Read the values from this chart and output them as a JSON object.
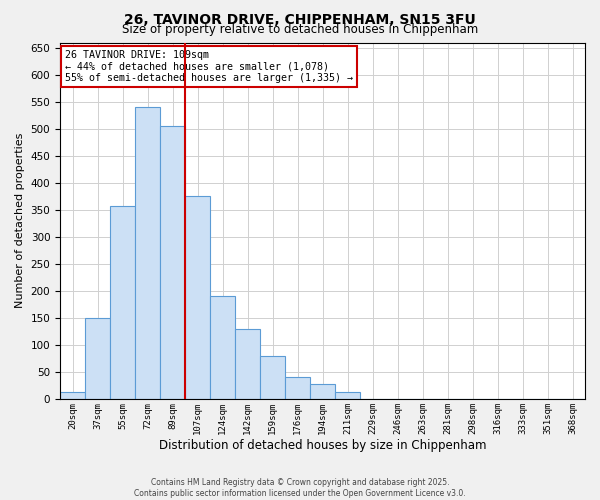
{
  "title1": "26, TAVINOR DRIVE, CHIPPENHAM, SN15 3FU",
  "title2": "Size of property relative to detached houses in Chippenham",
  "xlabel": "Distribution of detached houses by size in Chippenham",
  "ylabel": "Number of detached properties",
  "bar_labels": [
    "20sqm",
    "37sqm",
    "55sqm",
    "72sqm",
    "89sqm",
    "107sqm",
    "124sqm",
    "142sqm",
    "159sqm",
    "176sqm",
    "194sqm",
    "211sqm",
    "229sqm",
    "246sqm",
    "263sqm",
    "281sqm",
    "298sqm",
    "316sqm",
    "333sqm",
    "351sqm",
    "368sqm"
  ],
  "bar_values": [
    13,
    150,
    357,
    540,
    505,
    375,
    190,
    130,
    80,
    40,
    28,
    13,
    0,
    0,
    0,
    0,
    0,
    0,
    0,
    0,
    0
  ],
  "bar_color": "#cce0f5",
  "bar_edge_color": "#5b9bd5",
  "vline_color": "#cc0000",
  "annotation_title": "26 TAVINOR DRIVE: 109sqm",
  "annotation_line1": "← 44% of detached houses are smaller (1,078)",
  "annotation_line2": "55% of semi-detached houses are larger (1,335) →",
  "annotation_box_edge_color": "#cc0000",
  "ylim": [
    0,
    660
  ],
  "yticks": [
    0,
    50,
    100,
    150,
    200,
    250,
    300,
    350,
    400,
    450,
    500,
    550,
    600,
    650
  ],
  "footnote1": "Contains HM Land Registry data © Crown copyright and database right 2025.",
  "footnote2": "Contains public sector information licensed under the Open Government Licence v3.0.",
  "bg_color": "#f0f0f0",
  "plot_bg_color": "#ffffff",
  "grid_color": "#d0d0d0",
  "title_fontsize": 10,
  "subtitle_fontsize": 9
}
